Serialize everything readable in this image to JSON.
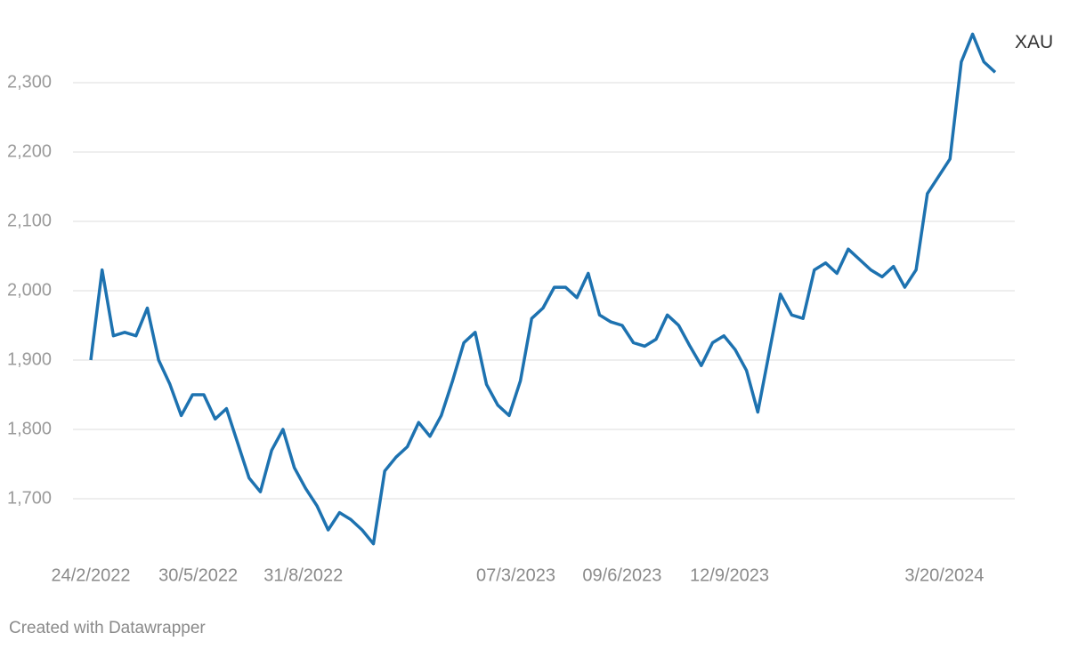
{
  "chart_data": {
    "type": "line",
    "x": [
      "2022-02-24",
      "2022-03-06",
      "2022-03-16",
      "2022-03-26",
      "2022-04-05",
      "2022-04-15",
      "2022-04-25",
      "2022-05-05",
      "2022-05-15",
      "2022-05-25",
      "2022-06-04",
      "2022-06-14",
      "2022-06-24",
      "2022-07-04",
      "2022-07-14",
      "2022-07-24",
      "2022-08-03",
      "2022-08-13",
      "2022-08-23",
      "2022-09-02",
      "2022-09-12",
      "2022-09-22",
      "2022-10-02",
      "2022-10-12",
      "2022-10-22",
      "2022-11-01",
      "2022-11-11",
      "2022-11-21",
      "2022-12-01",
      "2022-12-11",
      "2022-12-21",
      "2022-12-31",
      "2023-01-10",
      "2023-01-20",
      "2023-01-30",
      "2023-02-09",
      "2023-02-19",
      "2023-03-01",
      "2023-03-11",
      "2023-03-21",
      "2023-03-31",
      "2023-04-10",
      "2023-04-20",
      "2023-04-30",
      "2023-05-10",
      "2023-05-20",
      "2023-05-30",
      "2023-06-09",
      "2023-06-19",
      "2023-06-29",
      "2023-07-09",
      "2023-07-19",
      "2023-07-29",
      "2023-08-08",
      "2023-08-18",
      "2023-08-28",
      "2023-09-07",
      "2023-09-17",
      "2023-09-27",
      "2023-10-07",
      "2023-10-17",
      "2023-10-27",
      "2023-11-06",
      "2023-11-16",
      "2023-11-26",
      "2023-12-06",
      "2023-12-16",
      "2023-12-26",
      "2024-01-05",
      "2024-01-15",
      "2024-01-25",
      "2024-02-04",
      "2024-02-14",
      "2024-02-24",
      "2024-03-05",
      "2024-03-15",
      "2024-03-25",
      "2024-04-04",
      "2024-04-14",
      "2024-04-24",
      "2024-05-04"
    ],
    "series": [
      {
        "name": "XAU",
        "color": "#1d72b0",
        "values": [
          1900,
          2030,
          1935,
          1940,
          1935,
          1975,
          1900,
          1865,
          1820,
          1850,
          1850,
          1815,
          1830,
          1780,
          1730,
          1710,
          1770,
          1800,
          1745,
          1715,
          1690,
          1655,
          1680,
          1670,
          1655,
          1635,
          1740,
          1760,
          1775,
          1810,
          1790,
          1820,
          1870,
          1925,
          1940,
          1865,
          1835,
          1820,
          1870,
          1960,
          1975,
          2005,
          2005,
          1990,
          2025,
          1965,
          1955,
          1950,
          1925,
          1920,
          1930,
          1965,
          1950,
          1920,
          1892,
          1925,
          1935,
          1915,
          1885,
          1825,
          1910,
          1995,
          1965,
          1960,
          2030,
          2040,
          2025,
          2060,
          2045,
          2030,
          2020,
          2035,
          2005,
          2030,
          2140,
          2165,
          2190,
          2330,
          2370,
          2330,
          2315
        ]
      }
    ],
    "xlim": [
      "2022-02-24",
      "2024-05-04"
    ],
    "xticks": [
      {
        "value": "2022-02-24",
        "label": "24/2/2022"
      },
      {
        "value": "2022-05-30",
        "label": "30/5/2022"
      },
      {
        "value": "2022-08-31",
        "label": "31/8/2022"
      },
      {
        "value": "2023-03-07",
        "label": "07/3/2023"
      },
      {
        "value": "2023-06-09",
        "label": "09/6/2023"
      },
      {
        "value": "2023-09-12",
        "label": "12/9/2023"
      },
      {
        "value": "2024-03-20",
        "label": "3/20/2024"
      }
    ],
    "ylim": [
      1600,
      2400
    ],
    "yticks": [
      {
        "value": 1700,
        "label": "1,700"
      },
      {
        "value": 1800,
        "label": "1,800"
      },
      {
        "value": 1900,
        "label": "1,900"
      },
      {
        "value": 2000,
        "label": "2,000"
      },
      {
        "value": 2100,
        "label": "2,100"
      },
      {
        "value": 2200,
        "label": "2,200"
      },
      {
        "value": 2300,
        "label": "2,300"
      }
    ],
    "grid": true,
    "footer": "Created with Datawrapper"
  }
}
